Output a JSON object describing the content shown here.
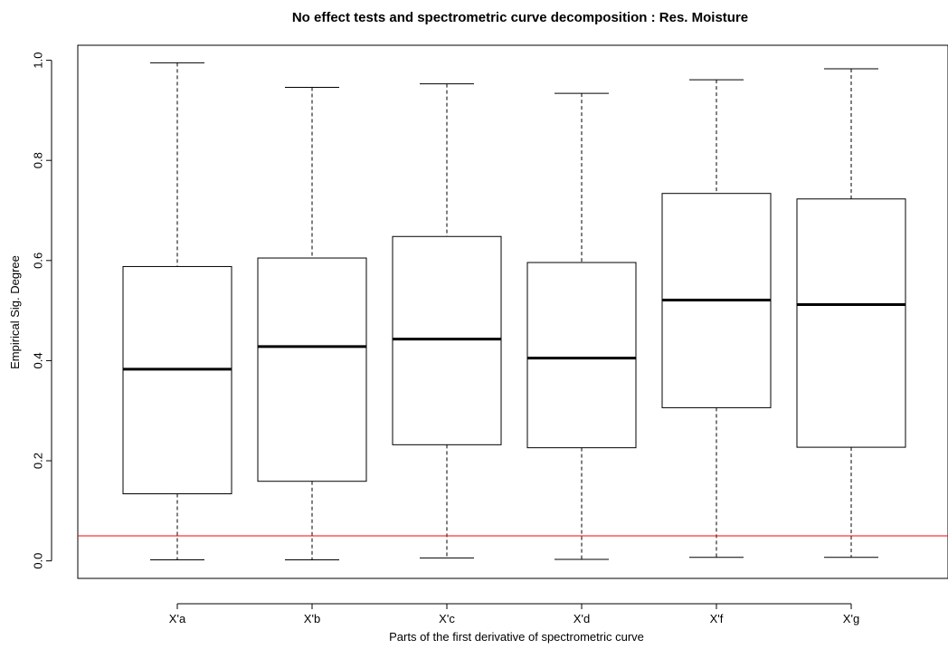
{
  "chart_data": {
    "type": "boxplot",
    "title": "No effect tests and spectrometric curve decomposition : Res. Moisture",
    "xlabel": "Parts of the first derivative of spectrometric curve",
    "ylabel": "Empirical Sig. Degree",
    "categories": [
      "X'a",
      "X'b",
      "X'c",
      "X'd",
      "X'f",
      "X'g"
    ],
    "boxes": [
      {
        "name": "X'a",
        "min": 0.002,
        "q1": 0.134,
        "median": 0.383,
        "q3": 0.588,
        "max": 0.995
      },
      {
        "name": "X'b",
        "min": 0.002,
        "q1": 0.159,
        "median": 0.428,
        "q3": 0.605,
        "max": 0.946
      },
      {
        "name": "X'c",
        "min": 0.006,
        "q1": 0.232,
        "median": 0.443,
        "q3": 0.648,
        "max": 0.953
      },
      {
        "name": "X'd",
        "min": 0.003,
        "q1": 0.226,
        "median": 0.405,
        "q3": 0.596,
        "max": 0.934
      },
      {
        "name": "X'f",
        "min": 0.007,
        "q1": 0.306,
        "median": 0.521,
        "q3": 0.734,
        "max": 0.961
      },
      {
        "name": "X'g",
        "min": 0.007,
        "q1": 0.227,
        "median": 0.512,
        "q3": 0.723,
        "max": 0.983
      }
    ],
    "yticks": [
      "0.0",
      "0.2",
      "0.4",
      "0.6",
      "0.8",
      "1.0"
    ],
    "ylim": [
      -0.035,
      1.03
    ],
    "reference_line": {
      "y": 0.05,
      "color": "#ff0000"
    },
    "grid": false,
    "legend": "none"
  }
}
